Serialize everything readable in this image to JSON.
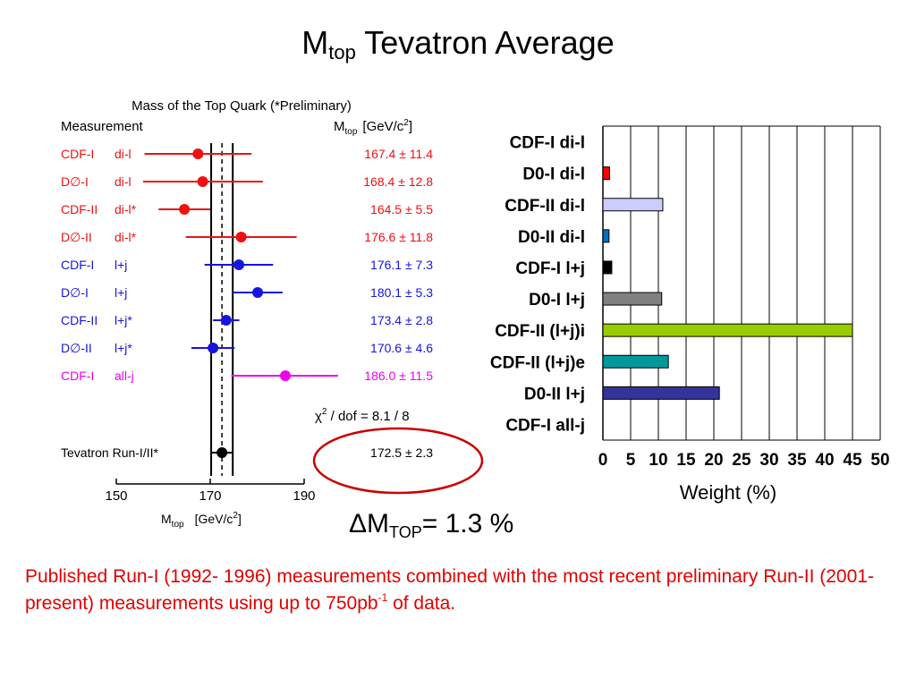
{
  "slide": {
    "title_main": "M",
    "title_sub": "top",
    "title_rest": " Tevatron Average",
    "delta_prefix": "ΔM",
    "delta_sub": "TOP",
    "delta_rest": "= 1.3 %",
    "note_part1": "Published Run-I (1992- 1996) measurements combined with the most recent preliminary Run-II (2001- present) measurements using up to 750pb",
    "note_sup": "-1",
    "note_part2": " of data."
  },
  "chart_data": [
    {
      "type": "scatter",
      "title": "Mass of the Top Quark (*Preliminary)",
      "header_measurement": "Measurement",
      "header_mtop": "M",
      "header_mtop_sub": "top",
      "header_unit": "[GeV/c",
      "header_unit_sup": "2",
      "header_unit_end": "]",
      "xlabel": "M",
      "xlabel_sub": "top",
      "xlabel_unit": "[GeV/c",
      "xlabel_unit_sup": "2",
      "xlabel_unit_end": "]",
      "xlim": [
        150,
        190
      ],
      "xticks": [
        "150",
        "170",
        "190"
      ],
      "average_value": 172.5,
      "average_band": [
        170.2,
        174.8
      ],
      "chi2_label": "χ",
      "chi2_sup": "2",
      "chi2_text": " / dof  =  8.1 / 8",
      "colors": {
        "red": "#ee1111",
        "blue": "#1515dd",
        "magenta": "#ee00ee",
        "black": "#000000",
        "circle": "#cc0000"
      },
      "series": [
        {
          "experiment": "CDF-I",
          "channel": "di-l",
          "value": 167.4,
          "error": 11.4,
          "label": "167.4 ± 11.4",
          "color": "red"
        },
        {
          "experiment": "D∅-I",
          "channel": "di-l",
          "value": 168.4,
          "error": 12.8,
          "label": "168.4 ± 12.8",
          "color": "red"
        },
        {
          "experiment": "CDF-II",
          "channel": "di-l*",
          "value": 164.5,
          "error": 5.5,
          "label": "164.5 ±  5.5",
          "color": "red"
        },
        {
          "experiment": "D∅-II",
          "channel": "di-l*",
          "value": 176.6,
          "error": 11.8,
          "label": "176.6 ± 11.8",
          "color": "red"
        },
        {
          "experiment": "CDF-I",
          "channel": "l+j",
          "value": 176.1,
          "error": 7.3,
          "label": "176.1 ±  7.3",
          "color": "blue"
        },
        {
          "experiment": "D∅-I",
          "channel": "l+j",
          "value": 180.1,
          "error": 5.3,
          "label": "180.1 ±  5.3",
          "color": "blue"
        },
        {
          "experiment": "CDF-II",
          "channel": "l+j*",
          "value": 173.4,
          "error": 2.8,
          "label": "173.4 ±  2.8",
          "color": "blue"
        },
        {
          "experiment": "D∅-II",
          "channel": "l+j*",
          "value": 170.6,
          "error": 4.6,
          "label": "170.6 ±  4.6",
          "color": "blue"
        },
        {
          "experiment": "CDF-I",
          "channel": "all-j",
          "value": 186.0,
          "error": 11.5,
          "label": "186.0 ± 11.5",
          "color": "magenta"
        }
      ],
      "combined": {
        "name": "Tevatron Run-I/II*",
        "value": 172.5,
        "error": 2.3,
        "label": "172.5 ±  2.3",
        "color": "black"
      }
    },
    {
      "type": "bar",
      "orientation": "horizontal",
      "categories": [
        "CDF-I di-l",
        "D0-I di-l",
        "CDF-II di-l",
        "D0-II di-l",
        "CDF-I l+j",
        "D0-I l+j",
        "CDF-II (l+j)i",
        "CDF-II (l+j)e",
        "D0-II l+j",
        "CDF-I all-j"
      ],
      "values": [
        0.0,
        1.2,
        10.8,
        1.1,
        1.6,
        10.6,
        45.0,
        11.8,
        21.0,
        0.0
      ],
      "bar_colors": [
        "#ff0000",
        "#ff0000",
        "#ccccff",
        "#0070c0",
        "#000000",
        "#808080",
        "#99cc00",
        "#009999",
        "#333399",
        "#ffffff"
      ],
      "xlabel": "Weight (%)",
      "xlim": [
        0,
        50
      ],
      "xticks": [
        "0",
        "5",
        "10",
        "15",
        "20",
        "25",
        "30",
        "35",
        "40",
        "45",
        "50"
      ],
      "grid": true
    }
  ]
}
